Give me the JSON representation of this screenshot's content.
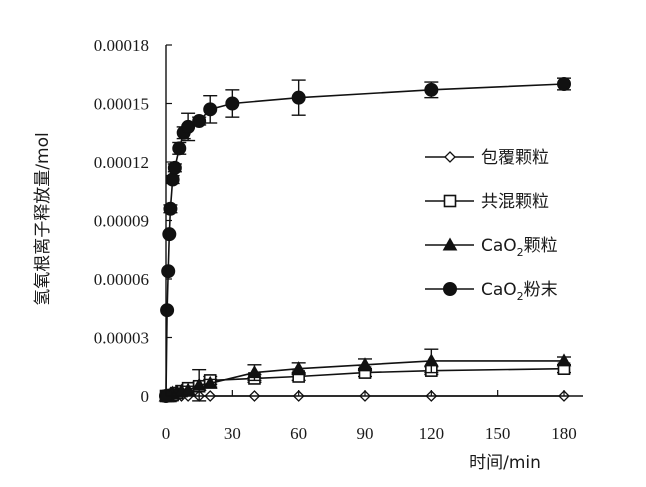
{
  "chart_data": {
    "type": "line",
    "xlabel": "时间/min",
    "ylabel": "氢氧根离子释放量/mol",
    "xlim": [
      0,
      180
    ],
    "ylim": [
      0,
      0.00018
    ],
    "xticks": [
      0,
      30,
      60,
      90,
      120,
      150,
      180
    ],
    "xtick_labels": [
      "0",
      "30",
      "60",
      "90",
      "120",
      "150",
      "180"
    ],
    "yticks": [
      0,
      3e-05,
      6e-05,
      9e-05,
      0.00012,
      0.00015,
      0.00018
    ],
    "ytick_labels": [
      "0",
      "0.00003",
      "0.00006",
      "0.00009",
      "0.00012",
      "0.00015",
      "0.00018"
    ],
    "grid": false,
    "legend_position": "right",
    "series": [
      {
        "name": "包覆颗粒",
        "marker": "diamond-open",
        "x": [
          0,
          0.5,
          1,
          2,
          3,
          5,
          7,
          10,
          15,
          20,
          40,
          60,
          90,
          120,
          180
        ],
        "y": [
          0,
          0,
          0,
          0,
          0,
          0,
          0,
          0,
          0,
          0,
          0,
          0,
          0,
          0,
          0
        ],
        "err": [
          0,
          0,
          0,
          0,
          0,
          0,
          0,
          0,
          0,
          0,
          0,
          0,
          0,
          0,
          0
        ]
      },
      {
        "name": "共混颗粒",
        "marker": "square-open",
        "x": [
          0,
          1,
          2,
          3,
          5,
          7,
          10,
          15,
          20,
          40,
          60,
          90,
          120,
          180
        ],
        "y": [
          0,
          0,
          0,
          5e-07,
          1.5e-06,
          2.5e-06,
          4e-06,
          5e-06,
          8e-06,
          9e-06,
          1e-05,
          1.2e-05,
          1.3e-05,
          1.4e-05
        ],
        "err": [
          0,
          0,
          0,
          0,
          0,
          0,
          1e-06,
          2e-06,
          2e-06,
          2e-06,
          2e-06,
          2e-06,
          2e-06,
          2e-06
        ]
      },
      {
        "name": "CaO2颗粒",
        "name_main": "CaO",
        "name_sub": "2",
        "name_tail": "颗粒",
        "marker": "triangle-filled",
        "x": [
          0,
          1,
          2,
          3,
          5,
          7,
          10,
          15,
          20,
          40,
          60,
          90,
          120,
          180
        ],
        "y": [
          0,
          0,
          1e-06,
          1.5e-06,
          2e-06,
          2.5e-06,
          3e-06,
          5.5e-06,
          6.5e-06,
          1.2e-05,
          1.4e-05,
          1.6e-05,
          1.8e-05,
          1.8e-05
        ],
        "err": [
          0,
          0,
          0,
          0,
          0,
          1e-06,
          2e-06,
          8e-06,
          2e-06,
          4e-06,
          3e-06,
          3e-06,
          6e-06,
          2e-06
        ]
      },
      {
        "name": "CaO2粉末",
        "name_main": "CaO",
        "name_sub": "2",
        "name_tail": "粉末",
        "marker": "circle-filled",
        "x": [
          0,
          0.5,
          1,
          1.5,
          2,
          3,
          4,
          6,
          8,
          10,
          15,
          20,
          30,
          60,
          120,
          180
        ],
        "y": [
          0,
          4.4e-05,
          6.4e-05,
          8.3e-05,
          9.6e-05,
          0.000111,
          0.000117,
          0.000127,
          0.000135,
          0.000138,
          0.000141,
          0.000147,
          0.00015,
          0.000153,
          0.000157,
          0.00016
        ],
        "err": [
          0,
          0,
          0,
          0,
          2e-06,
          2e-06,
          2e-06,
          3e-06,
          3e-06,
          7e-06,
          2e-06,
          7e-06,
          7e-06,
          9e-06,
          4e-06,
          3e-06
        ]
      }
    ]
  }
}
